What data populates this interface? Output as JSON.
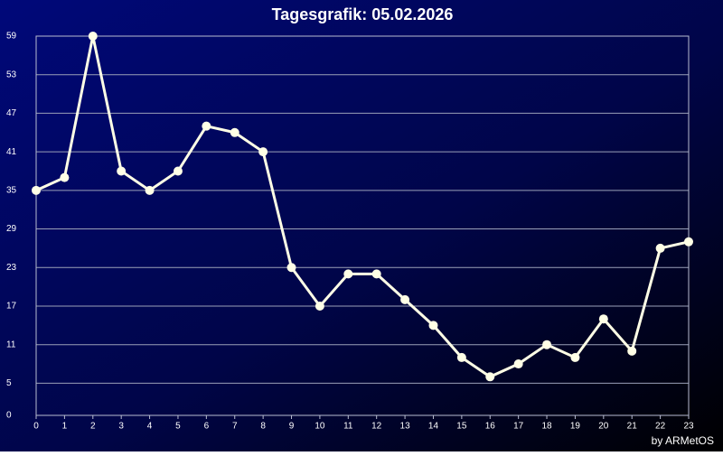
{
  "chart_data": {
    "type": "line",
    "title": "Tagesgrafik: 05.02.2026",
    "credit": "by ARMetOS",
    "x": [
      0,
      1,
      2,
      3,
      4,
      5,
      6,
      7,
      8,
      9,
      10,
      11,
      12,
      13,
      14,
      15,
      16,
      17,
      18,
      19,
      20,
      21,
      22,
      23
    ],
    "series": [
      {
        "color": "#ffffe6",
        "values": [
          35,
          37,
          59,
          38,
          35,
          38,
          45,
          44,
          41,
          23,
          17,
          22,
          22,
          18,
          14,
          9,
          6,
          8,
          11,
          9,
          15,
          10,
          26,
          27
        ]
      }
    ],
    "xlim": [
      0,
      23
    ],
    "xticks": [
      0,
      1,
      2,
      3,
      4,
      5,
      6,
      7,
      8,
      9,
      10,
      11,
      12,
      13,
      14,
      15,
      16,
      17,
      18,
      19,
      20,
      21,
      22,
      23
    ],
    "ylim": [
      0,
      59
    ],
    "yticks": [
      0,
      5,
      11,
      17,
      23,
      29,
      35,
      41,
      47,
      53,
      59
    ],
    "grid": true
  }
}
